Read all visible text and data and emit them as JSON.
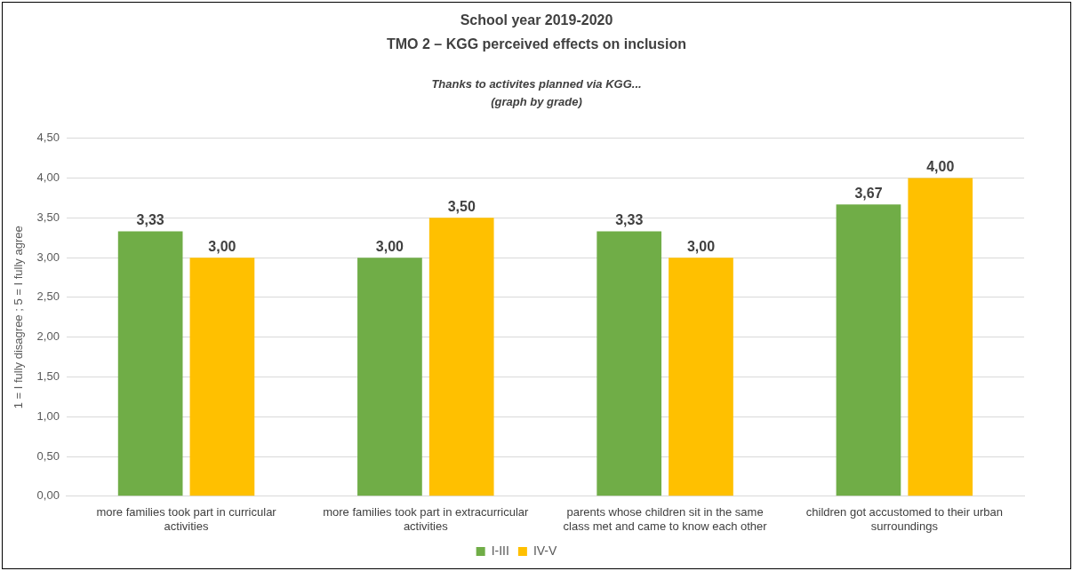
{
  "chart_data": {
    "type": "bar",
    "title": "School year 2019-2020",
    "subtitle": "TMO 2 – KGG perceived effects on inclusion",
    "annotations": [
      "Thanks to activites planned via KGG...",
      "(graph by grade)"
    ],
    "ylabel": "1 = I fully disagree ; 5 = I fully agree",
    "categories": [
      "more families took part in curricular activities",
      "more families took part in extracurricular activities",
      "parents whose children sit in the same class met and came to know each other",
      "children got accustomed to their urban surroundings"
    ],
    "series": [
      {
        "name": "I-III",
        "color": "#70ad47",
        "values": [
          3.33,
          3.0,
          3.33,
          3.67
        ],
        "value_labels": [
          "3,33",
          "3,00",
          "3,33",
          "3,67"
        ]
      },
      {
        "name": "IV-V",
        "color": "#ffc000",
        "values": [
          3.0,
          3.5,
          3.0,
          4.0
        ],
        "value_labels": [
          "3,00",
          "3,50",
          "3,00",
          "4,00"
        ]
      }
    ],
    "ylim": [
      0,
      4.5
    ],
    "yticks": [
      {
        "value": 0,
        "label": "0,00"
      },
      {
        "value": 0.5,
        "label": "0,50"
      },
      {
        "value": 1,
        "label": "1,00"
      },
      {
        "value": 1.5,
        "label": "1,50"
      },
      {
        "value": 2,
        "label": "2,00"
      },
      {
        "value": 2.5,
        "label": "2,50"
      },
      {
        "value": 3,
        "label": "3,00"
      },
      {
        "value": 3.5,
        "label": "3,50"
      },
      {
        "value": 4,
        "label": "4,00"
      },
      {
        "value": 4.5,
        "label": "4,50"
      }
    ],
    "grid": "y",
    "legend": "bottom"
  }
}
